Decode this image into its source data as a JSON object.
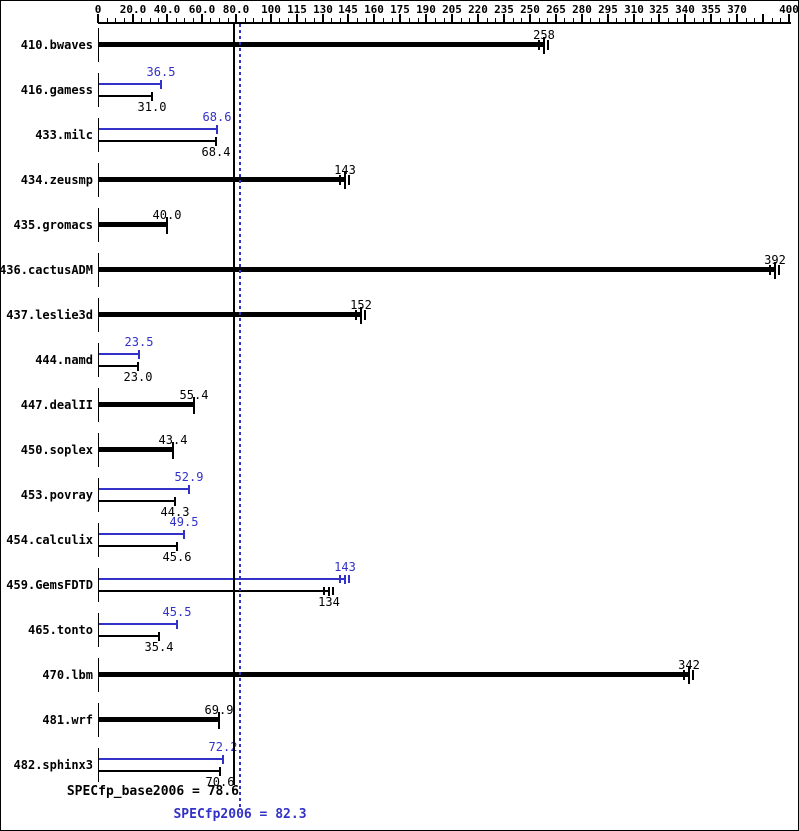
{
  "chart_data": {
    "type": "bar",
    "orientation": "horizontal",
    "title": "",
    "xlabel": "",
    "ylabel": "",
    "xlim": [
      0,
      400
    ],
    "grid": false,
    "colors": {
      "base": "#000000",
      "peak": "#3232c8"
    },
    "axis": {
      "minor_tick_step": 5,
      "major_ticks": [
        {
          "value": 0,
          "label": "0"
        },
        {
          "value": 20,
          "label": "20.0"
        },
        {
          "value": 40,
          "label": "40.0"
        },
        {
          "value": 60,
          "label": "60.0"
        },
        {
          "value": 80,
          "label": "80.0"
        },
        {
          "value": 100,
          "label": "100"
        },
        {
          "value": 115,
          "label": "115"
        },
        {
          "value": 130,
          "label": "130"
        },
        {
          "value": 145,
          "label": "145"
        },
        {
          "value": 160,
          "label": "160"
        },
        {
          "value": 175,
          "label": "175"
        },
        {
          "value": 190,
          "label": "190"
        },
        {
          "value": 205,
          "label": "205"
        },
        {
          "value": 220,
          "label": "220"
        },
        {
          "value": 235,
          "label": "235"
        },
        {
          "value": 250,
          "label": "250"
        },
        {
          "value": 265,
          "label": "265"
        },
        {
          "value": 280,
          "label": "280"
        },
        {
          "value": 295,
          "label": "295"
        },
        {
          "value": 310,
          "label": "310"
        },
        {
          "value": 325,
          "label": "325"
        },
        {
          "value": 340,
          "label": "340"
        },
        {
          "value": 355,
          "label": "355"
        },
        {
          "value": 370,
          "label": "370"
        },
        {
          "value": 385,
          "label": ""
        },
        {
          "value": 400,
          "label": "400"
        }
      ]
    },
    "benchmarks": [
      {
        "name": "410.bwaves",
        "base": 258,
        "base_label": "258",
        "peak": null,
        "peak_label": null,
        "spread": true
      },
      {
        "name": "416.gamess",
        "base": 31.0,
        "base_label": "31.0",
        "peak": 36.5,
        "peak_label": "36.5",
        "spread": false
      },
      {
        "name": "433.milc",
        "base": 68.4,
        "base_label": "68.4",
        "peak": 68.6,
        "peak_label": "68.6",
        "spread": false
      },
      {
        "name": "434.zeusmp",
        "base": 143,
        "base_label": "143",
        "peak": null,
        "peak_label": null,
        "spread": true
      },
      {
        "name": "435.gromacs",
        "base": 40.0,
        "base_label": "40.0",
        "peak": null,
        "peak_label": null,
        "spread": false
      },
      {
        "name": "436.cactusADM",
        "base": 392,
        "base_label": "392",
        "peak": null,
        "peak_label": null,
        "spread": true
      },
      {
        "name": "437.leslie3d",
        "base": 152,
        "base_label": "152",
        "peak": null,
        "peak_label": null,
        "spread": true
      },
      {
        "name": "444.namd",
        "base": 23.0,
        "base_label": "23.0",
        "peak": 23.5,
        "peak_label": "23.5",
        "spread": false
      },
      {
        "name": "447.dealII",
        "base": 55.4,
        "base_label": "55.4",
        "peak": null,
        "peak_label": null,
        "spread": false
      },
      {
        "name": "450.soplex",
        "base": 43.4,
        "base_label": "43.4",
        "peak": null,
        "peak_label": null,
        "spread": false
      },
      {
        "name": "453.povray",
        "base": 44.3,
        "base_label": "44.3",
        "peak": 52.9,
        "peak_label": "52.9",
        "spread": false
      },
      {
        "name": "454.calculix",
        "base": 45.6,
        "base_label": "45.6",
        "peak": 49.5,
        "peak_label": "49.5",
        "spread": false
      },
      {
        "name": "459.GemsFDTD",
        "base": 134,
        "base_label": "134",
        "peak": 143,
        "peak_label": "143",
        "spread": true
      },
      {
        "name": "465.tonto",
        "base": 35.4,
        "base_label": "35.4",
        "peak": 45.5,
        "peak_label": "45.5",
        "spread": false
      },
      {
        "name": "470.lbm",
        "base": 342,
        "base_label": "342",
        "peak": null,
        "peak_label": null,
        "spread": true
      },
      {
        "name": "481.wrf",
        "base": 69.9,
        "base_label": "69.9",
        "peak": null,
        "peak_label": null,
        "spread": false
      },
      {
        "name": "482.sphinx3",
        "base": 70.6,
        "base_label": "70.6",
        "peak": 72.2,
        "peak_label": "72.2",
        "spread": false
      }
    ],
    "means": {
      "base": {
        "value": 78.6,
        "label": "SPECfp_base2006 = 78.6"
      },
      "peak": {
        "value": 82.3,
        "label": "SPECfp2006 = 82.3"
      }
    }
  }
}
